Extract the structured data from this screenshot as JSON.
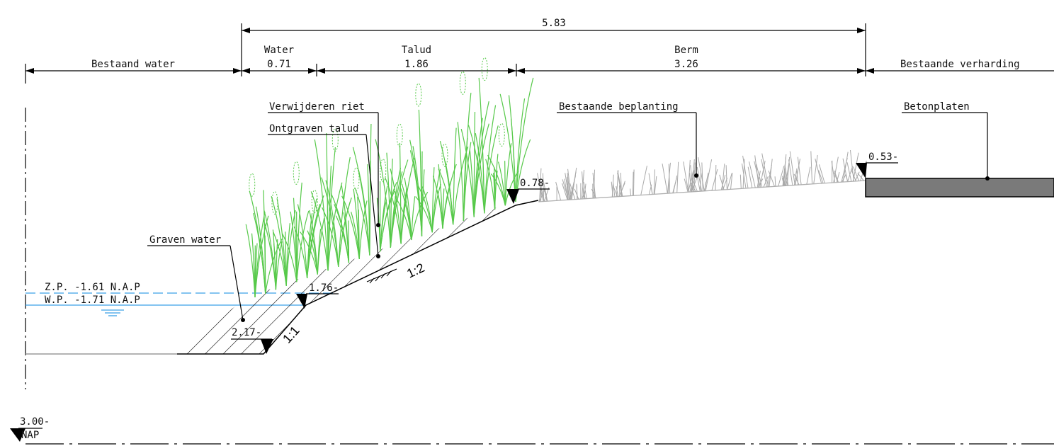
{
  "dimensions": {
    "total": "5.83",
    "water_label": "Water",
    "water_value": "0.71",
    "talud_label": "Talud",
    "talud_value": "1.86",
    "berm_label": "Berm",
    "berm_value": "3.26",
    "left_label": "Bestaand water",
    "right_label": "Bestaande verharding"
  },
  "annotations": {
    "verwijderen_riet": "Verwijderen riet",
    "ontgraven_talud": "Ontgraven talud",
    "bestaande_beplanting": "Bestaande beplanting",
    "betonplaten": "Betonplaten",
    "graven_water": "Graven water"
  },
  "levels": {
    "zp": "Z.P. -1.61 N.A.P",
    "wp": "W.P. -1.71 N.A.P",
    "l_053": "0.53-",
    "l_078": "0.78-",
    "l_176": "1.76-",
    "l_217": "2.17-",
    "l_300": "3.00-",
    "nap": "NAP"
  },
  "slopes": {
    "upper": "1:2",
    "lower": "1:1"
  },
  "colors": {
    "water_line": "#3aa0e8",
    "reed": "#57c94a",
    "shrub": "#a9a9a9",
    "concrete": "#7a7a7a"
  }
}
